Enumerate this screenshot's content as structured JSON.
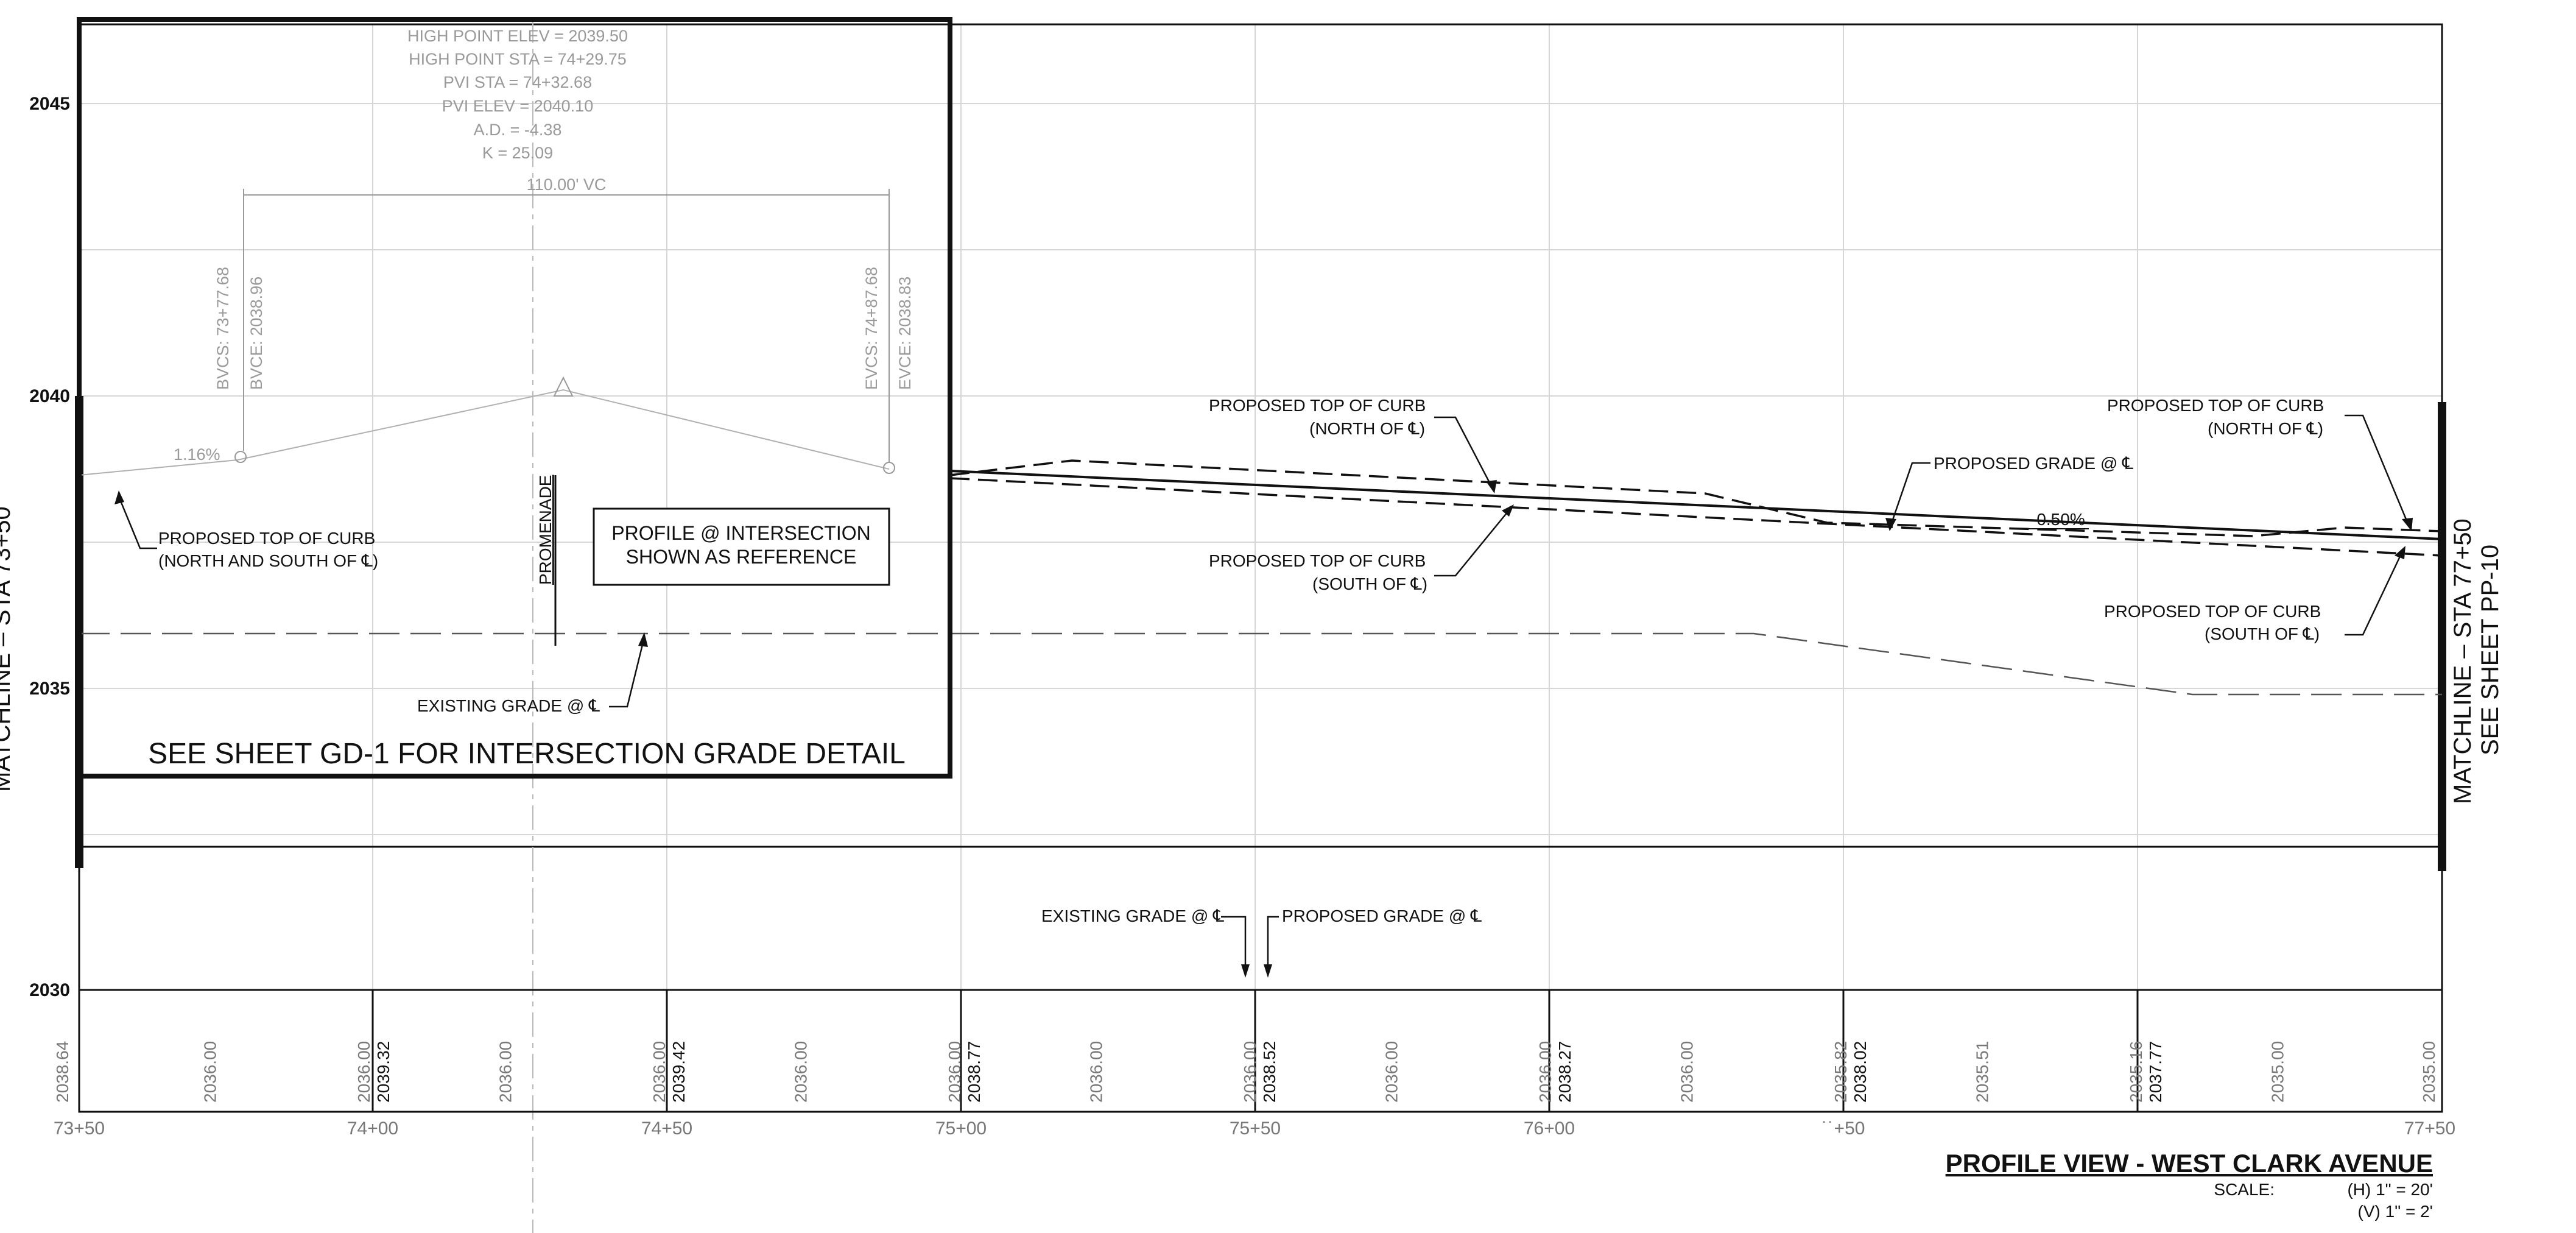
{
  "profile_view": {
    "title": "PROFILE VIEW -  WEST CLARK AVENUE",
    "scale_label": "SCALE:",
    "scale_h": "(H) 1\" = 20'",
    "scale_v": "(V) 1\" = 2'"
  },
  "y_axis": {
    "ticks": [
      "2045",
      "2040",
      "2035",
      "2030"
    ],
    "tick_values": [
      2045,
      2040,
      2035,
      2030
    ]
  },
  "stations": [
    "73+50",
    "74+00",
    "74+50",
    "75+00",
    "75+50",
    "76+00",
    "77+50"
  ],
  "station_partial": "˙˙+50",
  "elevation_table": {
    "columns": [
      {
        "existing": "2038.64",
        "proposed": ""
      },
      {
        "existing": "2036.00",
        "proposed": ""
      },
      {
        "existing": "2036.00",
        "proposed": "2039.32"
      },
      {
        "existing": "2036.00",
        "proposed": ""
      },
      {
        "existing": "2036.00",
        "proposed": "2039.42"
      },
      {
        "existing": "2036.00",
        "proposed": ""
      },
      {
        "existing": "2036.00",
        "proposed": "2038.77"
      },
      {
        "existing": "2036.00",
        "proposed": ""
      },
      {
        "existing": "2036.00",
        "proposed": "2038.52"
      },
      {
        "existing": "2036.00",
        "proposed": ""
      },
      {
        "existing": "2036.00",
        "proposed": "2038.27"
      },
      {
        "existing": "2036.00",
        "proposed": ""
      },
      {
        "existing": "2035.82",
        "proposed": "2038.02"
      },
      {
        "existing": "2035.51",
        "proposed": ""
      },
      {
        "existing": "2035.16",
        "proposed": "2037.77"
      },
      {
        "existing": "2035.00",
        "proposed": ""
      },
      {
        "existing": "2035.00",
        "proposed": ""
      }
    ]
  },
  "curve_data": {
    "high_point_elev": "HIGH POINT ELEV = 2039.50",
    "high_point_sta": "HIGH POINT STA = 74+29.75",
    "pvi_sta": "PVI STA = 74+32.68",
    "pvi_elev": "PVI ELEV = 2040.10",
    "ad": "A.D. = -4.38",
    "k": "K = 25.09",
    "vc": "110.00' VC",
    "bvcs": "BVCS: 73+77.68",
    "bvce": "BVCE: 2038.96",
    "evcs": "EVCS: 74+87.68",
    "evce": "EVCE: 2038.83",
    "grade_left": "1.16%",
    "grade_right": "-0.50%"
  },
  "labels": {
    "ptc_north_1": "PROPOSED TOP OF CURB",
    "ptc_north_2": "(NORTH OF ℄)",
    "ptc_south_1": "PROPOSED TOP OF CURB",
    "ptc_south_2": "(SOUTH OF ℄)",
    "ptc_ns_1": "PROPOSED TOP OF CURB",
    "ptc_ns_2": "(NORTH AND SOUTH OF ℄)",
    "proposed_grade": "PROPOSED GRADE @ ℄",
    "existing_grade": "EXISTING GRADE @ ℄",
    "promenade": "PROMENADE",
    "profile_ref_1": "PROFILE @ INTERSECTION",
    "profile_ref_2": "SHOWN AS REFERENCE",
    "see_sheet": "SEE SHEET GD-1 FOR INTERSECTION GRADE DETAIL"
  },
  "matchline": {
    "right_1": "MATCHLINE – STA 77+50",
    "right_2": "SEE SHEET PP-10",
    "left": "MATCHLINE – STA 73+50"
  },
  "colors": {
    "ink": "#111111",
    "grid": "#d6d6d6",
    "faded": "#9a9a9a"
  }
}
